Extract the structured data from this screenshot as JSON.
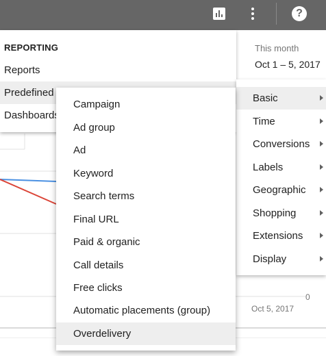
{
  "topbar": {
    "chart_icon": "bar-chart-icon",
    "more_icon": "more-vert-icon",
    "help_icon": "help-icon",
    "help_glyph": "?"
  },
  "date_range": {
    "label": "This month",
    "value": "Oct 1 – 5, 2017"
  },
  "chart": {
    "x_label": "Oct 5, 2017",
    "zero_label": "0"
  },
  "reporting_menu": {
    "title": "REPORTING",
    "items": [
      {
        "label": "Reports"
      },
      {
        "label": "Predefined reports (Dimensions)"
      },
      {
        "label": "Dashboards"
      }
    ]
  },
  "report_list": {
    "items": [
      {
        "label": "Campaign"
      },
      {
        "label": "Ad group"
      },
      {
        "label": "Ad"
      },
      {
        "label": "Keyword"
      },
      {
        "label": "Search terms"
      },
      {
        "label": "Final URL"
      },
      {
        "label": "Paid & organic"
      },
      {
        "label": "Call details"
      },
      {
        "label": "Free clicks"
      },
      {
        "label": "Automatic placements (group)"
      },
      {
        "label": "Overdelivery"
      }
    ]
  },
  "category_menu": {
    "items": [
      {
        "label": "Basic"
      },
      {
        "label": "Time"
      },
      {
        "label": "Conversions"
      },
      {
        "label": "Labels"
      },
      {
        "label": "Geographic"
      },
      {
        "label": "Shopping"
      },
      {
        "label": "Extensions"
      },
      {
        "label": "Display"
      }
    ]
  },
  "colors": {
    "topbar": "#666666",
    "line_blue": "#4a90e2",
    "line_red": "#db4437",
    "highlight": "#eeeeee"
  }
}
